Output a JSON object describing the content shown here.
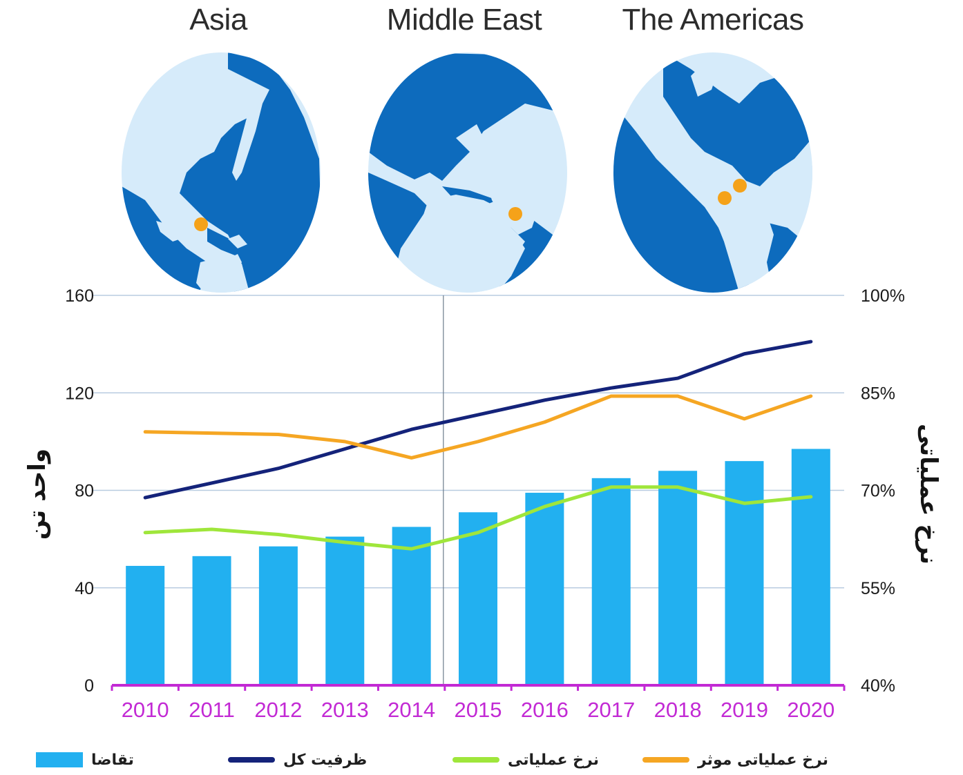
{
  "regions": [
    {
      "name": "Asia"
    },
    {
      "name": "Middle East"
    },
    {
      "name": "The Americas"
    }
  ],
  "colors": {
    "ocean": "#0d6bbd",
    "land": "#d6ebfa",
    "marker": "#f5a219",
    "bars": "#22b0f0",
    "total_capacity": "#14237a",
    "operating_rate": "#9fe63b",
    "effective_operating_rate": "#f5a623",
    "x_axis": "#c229d4",
    "x_tick_text": "#c229d4",
    "grid": "#b8cbe0"
  },
  "chart_data": {
    "type": "bar",
    "categories": [
      "2010",
      "2011",
      "2012",
      "2013",
      "2014",
      "2015",
      "2016",
      "2017",
      "2018",
      "2019",
      "2020"
    ],
    "y_left": {
      "label": "واحد تن",
      "ticks": [
        "0",
        "40",
        "80",
        "120",
        "160"
      ],
      "range": [
        0,
        160
      ]
    },
    "y_right": {
      "label": "نرخ عملیاتی",
      "ticks": [
        "40%",
        "55%",
        "70%",
        "85%",
        "100%"
      ],
      "range": [
        40,
        100
      ]
    },
    "series": [
      {
        "name": "تقاضا",
        "kind": "bar",
        "axis": "left",
        "values": [
          49,
          53,
          57,
          61,
          65,
          71,
          79,
          85,
          88,
          92,
          97
        ]
      },
      {
        "name": "ظرفیت کل",
        "kind": "line",
        "axis": "left",
        "values": [
          77,
          83,
          89,
          97,
          105,
          111,
          117,
          122,
          126,
          136,
          141
        ]
      },
      {
        "name": "نرخ عملیاتی",
        "kind": "line",
        "axis": "right",
        "values": [
          63.5,
          64,
          63.2,
          62,
          61,
          63.5,
          67.5,
          70.5,
          70.5,
          68,
          69
        ]
      },
      {
        "name": "نرخ عملیاتی موثر",
        "kind": "line",
        "axis": "right",
        "values": [
          79,
          78.8,
          78.6,
          77.5,
          75,
          77.5,
          80.5,
          84.5,
          84.5,
          81,
          84.5
        ]
      }
    ],
    "grid": true,
    "legend_placement": "bottom"
  },
  "legend": [
    {
      "label": "تقاضا",
      "kind": "bar"
    },
    {
      "label": "ظرفیت کل",
      "kind": "line"
    },
    {
      "label": "نرخ عملیاتی",
      "kind": "line"
    },
    {
      "label": "نرخ عملیاتی موثر",
      "kind": "line"
    }
  ]
}
